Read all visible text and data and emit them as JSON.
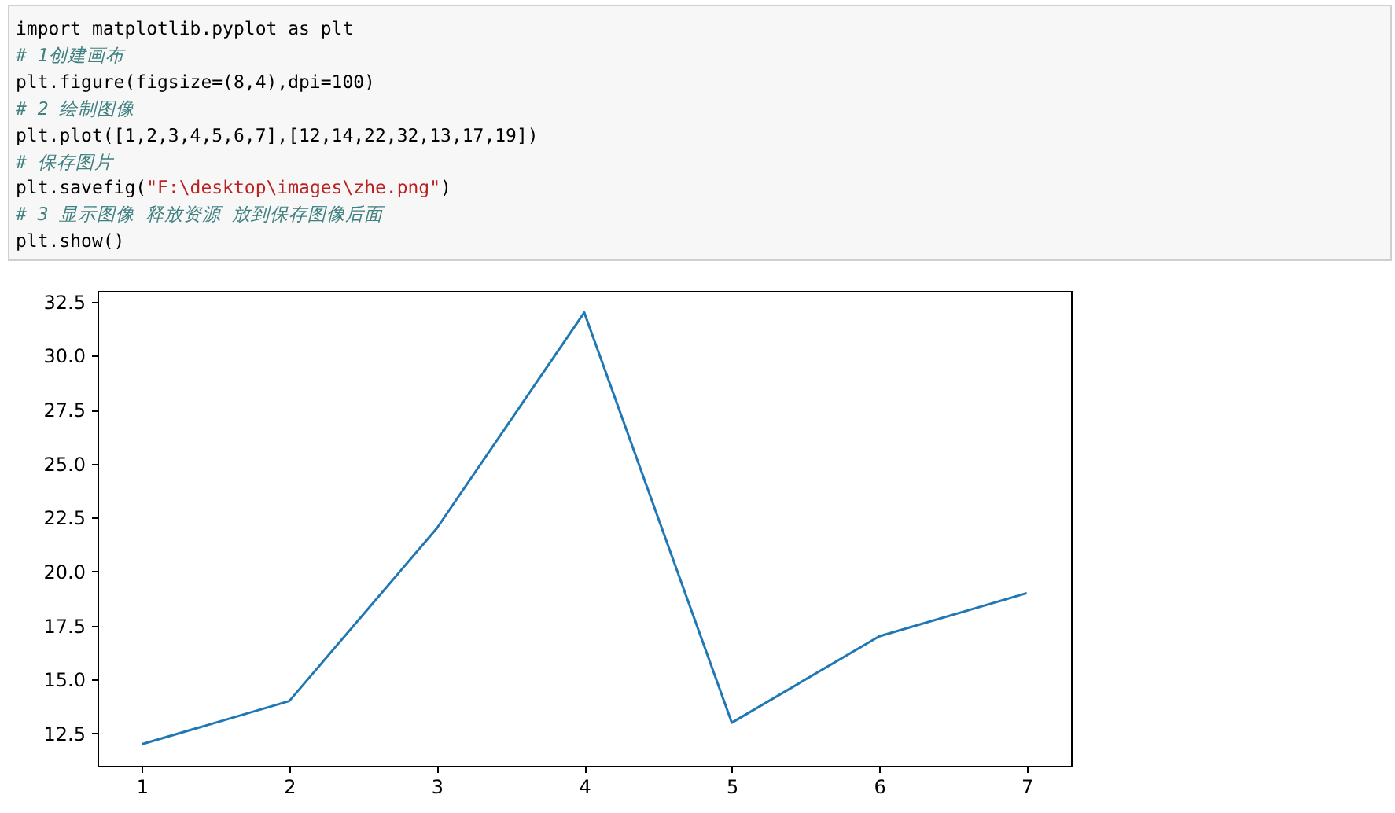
{
  "chart_data": {
    "type": "line",
    "annotations": [
      "import matplotlib.pyplot as plt",
      "# 1创建画布",
      "plt.figure(figsize=(8,4),dpi=100)",
      "# 2 绘制图像",
      "plt.plot([1,2,3,4,5,6,7],[12,14,22,32,13,17,19])",
      "# 保存图片",
      "plt.savefig(\"F:\\desktop\\images\\zhe.png\")",
      "# 3 显示图像 释放资源 放到保存图像后面",
      "plt.show()"
    ],
    "x": [
      1,
      2,
      3,
      4,
      5,
      6,
      7
    ],
    "series": [
      {
        "color": "#1f77b4",
        "values": [
          12,
          14,
          22,
          32,
          13,
          17,
          19
        ]
      }
    ],
    "xlim": [
      0.7,
      7.3
    ],
    "xticks": [
      1,
      2,
      3,
      4,
      5,
      6,
      7
    ],
    "ylim": [
      11,
      33
    ],
    "yticks": [
      12.5,
      {
        "value": 15,
        "label": "15.0"
      },
      17.5,
      {
        "value": 20,
        "label": "20.0"
      },
      22.5,
      {
        "value": 25,
        "label": "25.0"
      },
      27.5,
      {
        "value": 30,
        "label": "30.0"
      },
      32.5
    ],
    "grid": false,
    "marker": "none",
    "line_style": "solid"
  }
}
